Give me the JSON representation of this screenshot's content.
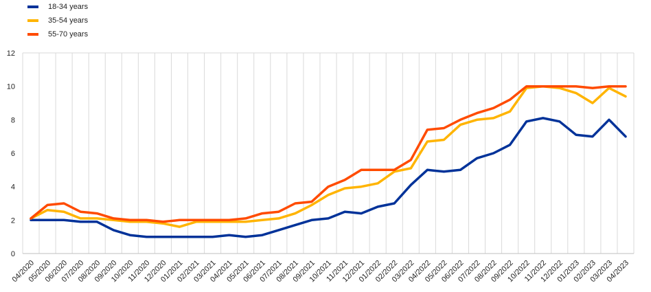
{
  "chart_data": {
    "type": "line",
    "title": "",
    "xlabel": "",
    "ylabel": "",
    "ylim": [
      0,
      12
    ],
    "yticks": [
      0,
      2,
      4,
      6,
      8,
      10,
      12
    ],
    "grid": "vertical",
    "legend_position": "top-left",
    "categories": [
      "04/2020",
      "05/2020",
      "06/2020",
      "07/2020",
      "08/2020",
      "09/2020",
      "10/2020",
      "11/2020",
      "12/2020",
      "01/2021",
      "02/2021",
      "03/2021",
      "04/2021",
      "05/2021",
      "06/2021",
      "07/2021",
      "08/2021",
      "09/2021",
      "10/2021",
      "11/2021",
      "12/2021",
      "01/2022",
      "02/2022",
      "03/2022",
      "04/2022",
      "05/2022",
      "06/2022",
      "07/2022",
      "08/2022",
      "09/2022",
      "10/2022",
      "11/2022",
      "12/2022",
      "01/2023",
      "02/2023",
      "03/2023",
      "04/2023"
    ],
    "series": [
      {
        "name": "18-34 years",
        "color": "#003299",
        "values": [
          2.0,
          2.0,
          2.0,
          1.9,
          1.9,
          1.4,
          1.1,
          1.0,
          1.0,
          1.0,
          1.0,
          1.0,
          1.1,
          1.0,
          1.1,
          1.4,
          1.7,
          2.0,
          2.1,
          2.5,
          2.4,
          2.8,
          3.0,
          4.1,
          5.0,
          4.9,
          5.0,
          5.7,
          6.0,
          6.5,
          7.9,
          8.1,
          7.9,
          7.1,
          7.0,
          8.0,
          7.0
        ]
      },
      {
        "name": "35-54 years",
        "color": "#FFB400",
        "values": [
          2.1,
          2.6,
          2.5,
          2.1,
          2.1,
          2.0,
          1.9,
          1.9,
          1.8,
          1.6,
          1.9,
          1.9,
          1.9,
          1.9,
          2.0,
          2.1,
          2.4,
          2.9,
          3.5,
          3.9,
          4.0,
          4.2,
          4.9,
          5.1,
          6.7,
          6.8,
          7.7,
          8.0,
          8.1,
          8.5,
          9.9,
          10.0,
          9.9,
          9.6,
          9.0,
          9.9,
          9.4
        ]
      },
      {
        "name": "55-70 years",
        "color": "#FF4B00",
        "values": [
          2.1,
          2.9,
          3.0,
          2.5,
          2.4,
          2.1,
          2.0,
          2.0,
          1.9,
          2.0,
          2.0,
          2.0,
          2.0,
          2.1,
          2.4,
          2.5,
          3.0,
          3.1,
          4.0,
          4.4,
          5.0,
          5.0,
          5.0,
          5.6,
          7.4,
          7.5,
          8.0,
          8.4,
          8.7,
          9.2,
          10.0,
          10.0,
          10.0,
          10.0,
          9.9,
          10.0,
          10.0
        ]
      }
    ]
  }
}
